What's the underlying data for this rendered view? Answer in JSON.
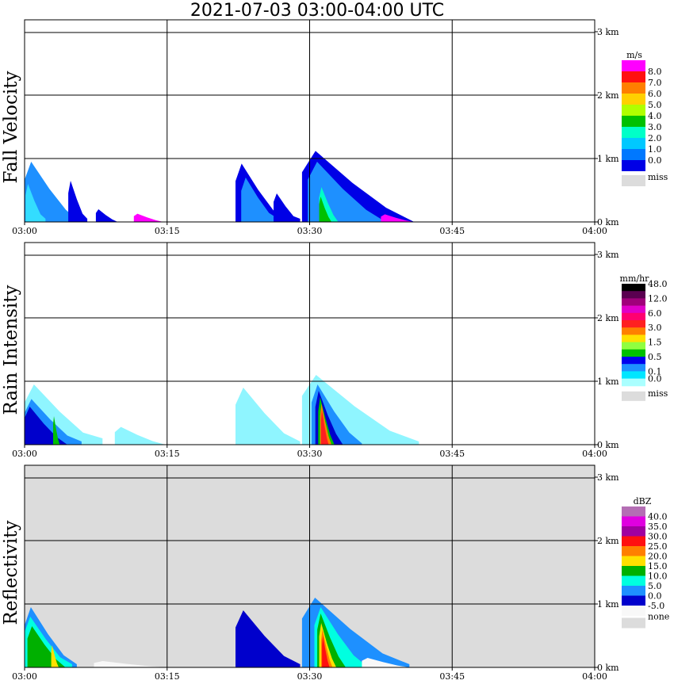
{
  "title": "2021-07-03   03:00-04:00 UTC",
  "chart_data": [
    {
      "type": "heatmap",
      "panel": "Fall Velocity",
      "ylabel": "Fall Velocity",
      "x_ticks": [
        "03:00",
        "03:15",
        "03:30",
        "03:45",
        "04:00"
      ],
      "y_ticks": [
        "0 km",
        "1 km",
        "2 km",
        "3 km"
      ],
      "xlim_minutes": [
        0,
        60
      ],
      "ylim_km": [
        0,
        3.2
      ],
      "background": "#ffffff",
      "colorbar": {
        "unit": "m/s",
        "labels": [
          "8.0",
          "7.0",
          "6.0",
          "5.0",
          "4.0",
          "3.0",
          "2.0",
          "1.0",
          "0.0"
        ],
        "colors": [
          "#ff00ff",
          "#ff1010",
          "#ff7f00",
          "#ffd000",
          "#b0ff00",
          "#00c000",
          "#00ffc8",
          "#00c8ff",
          "#0078ff",
          "#0000e6"
        ],
        "miss_label": "miss",
        "miss_color": "#dcdcdc"
      },
      "echoes": [
        {
          "t0": 0,
          "t1": 5.8,
          "top": 0.95,
          "tail": 0.0,
          "c": "#1e90ff"
        },
        {
          "t0": 0.1,
          "t1": 2.2,
          "top": 0.6,
          "tail": 0.05,
          "c": "#33ddff"
        },
        {
          "t0": 4.6,
          "t1": 6.6,
          "top": 0.65,
          "tail": 0.05,
          "c": "#0000e6"
        },
        {
          "t0": 7.5,
          "t1": 9.8,
          "top": 0.2,
          "tail": 0.0,
          "c": "#0000e6"
        },
        {
          "t0": 11.5,
          "t1": 14.6,
          "top": 0.13,
          "tail": 0.0,
          "c": "#ff00ff"
        },
        {
          "t0": 22.2,
          "t1": 27.5,
          "top": 0.92,
          "tail": 0.05,
          "c": "#0000e6"
        },
        {
          "t0": 22.8,
          "t1": 26.7,
          "top": 0.7,
          "tail": 0.05,
          "c": "#1e90ff"
        },
        {
          "t0": 26.2,
          "t1": 29.0,
          "top": 0.45,
          "tail": 0.05,
          "c": "#0000e6"
        },
        {
          "t0": 29.2,
          "t1": 41.0,
          "top": 1.12,
          "tail": 0.0,
          "c": "#0000e6"
        },
        {
          "t0": 29.8,
          "t1": 38.0,
          "top": 0.95,
          "tail": 0.0,
          "c": "#1e90ff"
        },
        {
          "t0": 31.0,
          "t1": 33.0,
          "top": 0.55,
          "tail": 0.0,
          "c": "#00ffc8"
        },
        {
          "t0": 31.0,
          "t1": 32.3,
          "top": 0.4,
          "tail": 0.0,
          "c": "#00c000"
        },
        {
          "t0": 37.5,
          "t1": 41.0,
          "top": 0.12,
          "tail": 0.0,
          "c": "#ff00ff"
        }
      ]
    },
    {
      "type": "heatmap",
      "panel": "Rain Intensity",
      "ylabel": "Rain Intensity",
      "x_ticks": [
        "03:00",
        "03:15",
        "03:30",
        "03:45",
        "04:00"
      ],
      "y_ticks": [
        "0 km",
        "1 km",
        "2 km",
        "3 km"
      ],
      "xlim_minutes": [
        0,
        60
      ],
      "ylim_km": [
        0,
        3.2
      ],
      "background": "#ffffff",
      "colorbar": {
        "unit": "mm/hr",
        "labels": [
          "48.0",
          "12.0",
          "6.0",
          "3.0",
          "1.5",
          "0.5",
          "0.1",
          "0.0"
        ],
        "label_rows": [
          0,
          2,
          4,
          6,
          8,
          10,
          12,
          13
        ],
        "colors": [
          "#000000",
          "#5a0050",
          "#a0007a",
          "#e000c8",
          "#ff0070",
          "#ff2020",
          "#ff8000",
          "#ffe000",
          "#90ff40",
          "#00c000",
          "#0000ee",
          "#1e90ff",
          "#00e6ff",
          "#aaffff"
        ],
        "miss_label": "miss",
        "miss_color": "#dcdcdc"
      },
      "echoes": [
        {
          "t0": 0,
          "t1": 8.2,
          "top": 0.95,
          "tail": 0.1,
          "c": "#8ff5ff"
        },
        {
          "t0": 0,
          "t1": 6.0,
          "top": 0.72,
          "tail": 0.05,
          "c": "#1e90ff"
        },
        {
          "t0": 0,
          "t1": 4.5,
          "top": 0.6,
          "tail": 0.0,
          "c": "#0000cc"
        },
        {
          "t0": 3.0,
          "t1": 3.7,
          "top": 0.45,
          "tail": 0.0,
          "c": "#00c000"
        },
        {
          "t0": 9.5,
          "t1": 14.8,
          "top": 0.28,
          "tail": 0.0,
          "c": "#8ff5ff"
        },
        {
          "t0": 22.2,
          "t1": 29.0,
          "top": 0.9,
          "tail": 0.05,
          "c": "#8ff5ff"
        },
        {
          "t0": 29.2,
          "t1": 41.5,
          "top": 1.1,
          "tail": 0.05,
          "c": "#8ff5ff"
        },
        {
          "t0": 30.2,
          "t1": 35.5,
          "top": 0.95,
          "tail": 0.02,
          "c": "#1e90ff"
        },
        {
          "t0": 30.6,
          "t1": 33.5,
          "top": 0.85,
          "tail": 0.0,
          "c": "#0000cc"
        },
        {
          "t0": 30.9,
          "t1": 32.6,
          "top": 0.75,
          "tail": 0.0,
          "c": "#00c000"
        },
        {
          "t0": 31.1,
          "t1": 32.3,
          "top": 0.65,
          "tail": 0.0,
          "c": "#ff8000"
        },
        {
          "t0": 31.2,
          "t1": 32.0,
          "top": 0.55,
          "tail": 0.0,
          "c": "#ff2020"
        }
      ]
    },
    {
      "type": "heatmap",
      "panel": "Reflectivity",
      "ylabel": "Reflectivity",
      "x_ticks": [
        "03:00",
        "03:15",
        "03:30",
        "03:45",
        "04:00"
      ],
      "y_ticks": [
        "0 km",
        "1 km",
        "2 km",
        "3 km"
      ],
      "xlim_minutes": [
        0,
        60
      ],
      "ylim_km": [
        0,
        3.2
      ],
      "background": "#dcdcdc",
      "colorbar": {
        "unit": "dBZ",
        "labels": [
          "40.0",
          "35.0",
          "30.0",
          "25.0",
          "20.0",
          "15.0",
          "10.0",
          "5.0",
          "0.0",
          "-5.0"
        ],
        "label_rows": [
          1,
          2,
          3,
          4,
          5,
          6,
          7,
          8,
          9,
          10
        ],
        "colors": [
          "#b46eb4",
          "#e000e0",
          "#a000a0",
          "#ff1010",
          "#ff7f00",
          "#ffe000",
          "#00b000",
          "#00ffe0",
          "#1e90ff",
          "#0000cc",
          "#f8f8f8"
        ],
        "none_label": "none",
        "none_color": "#dcdcdc"
      },
      "echoes": [
        {
          "t0": 0,
          "t1": 5.5,
          "top": 0.95,
          "tail": 0.05,
          "c": "#1e90ff"
        },
        {
          "t0": 0,
          "t1": 5.0,
          "top": 0.8,
          "tail": 0.05,
          "c": "#00ffe0"
        },
        {
          "t0": 0.3,
          "t1": 4.3,
          "top": 0.65,
          "tail": 0.0,
          "c": "#00b000"
        },
        {
          "t0": 2.8,
          "t1": 3.6,
          "top": 0.35,
          "tail": 0.0,
          "c": "#ffe000"
        },
        {
          "t0": 7.3,
          "t1": 15.0,
          "top": 0.1,
          "tail": 0.0,
          "c": "#f8f8f8"
        },
        {
          "t0": 22.2,
          "t1": 29.0,
          "top": 0.9,
          "tail": 0.05,
          "c": "#0000cc"
        },
        {
          "t0": 29.2,
          "t1": 40.5,
          "top": 1.1,
          "tail": 0.05,
          "c": "#1e90ff"
        },
        {
          "t0": 30.5,
          "t1": 36.0,
          "top": 0.95,
          "tail": 0.02,
          "c": "#00ffe0"
        },
        {
          "t0": 30.8,
          "t1": 33.8,
          "top": 0.85,
          "tail": 0.0,
          "c": "#00b000"
        },
        {
          "t0": 31.0,
          "t1": 32.8,
          "top": 0.7,
          "tail": 0.0,
          "c": "#ffe000"
        },
        {
          "t0": 31.2,
          "t1": 32.4,
          "top": 0.6,
          "tail": 0.0,
          "c": "#ff7f00"
        },
        {
          "t0": 31.3,
          "t1": 32.1,
          "top": 0.5,
          "tail": 0.0,
          "c": "#ff1010"
        },
        {
          "t0": 35.5,
          "t1": 40.5,
          "top": 0.15,
          "tail": 0.0,
          "c": "#f8f8f8"
        }
      ]
    }
  ]
}
